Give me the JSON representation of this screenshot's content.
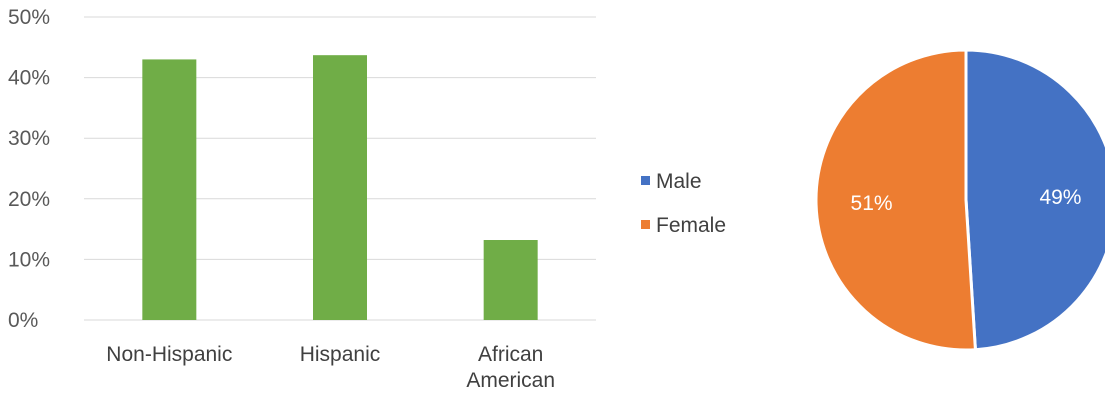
{
  "colors": {
    "bar": "#70AD47",
    "male": "#4472C4",
    "female": "#ED7D31",
    "grid": "#D9D9D9",
    "tick_text": "#595959"
  },
  "chart_data": [
    {
      "type": "bar",
      "categories": [
        [
          "Non-Hispanic"
        ],
        [
          "Hispanic"
        ],
        [
          "African",
          "American"
        ]
      ],
      "values": [
        0.43,
        0.437,
        0.132
      ],
      "ylim": [
        0,
        0.5
      ],
      "yticks": [
        {
          "value": 0,
          "label": "0%"
        },
        {
          "value": 0.1,
          "label": "10%"
        },
        {
          "value": 0.2,
          "label": "20%"
        },
        {
          "value": 0.3,
          "label": "30%"
        },
        {
          "value": 0.4,
          "label": "40%"
        },
        {
          "value": 0.5,
          "label": "50%"
        }
      ],
      "grid": true
    },
    {
      "type": "pie",
      "legend_position": "left",
      "slices": [
        {
          "name": "Male",
          "value": 49,
          "label": "49%",
          "color": "#4472C4"
        },
        {
          "name": "Female",
          "value": 51,
          "label": "51%",
          "color": "#ED7D31"
        }
      ]
    }
  ]
}
